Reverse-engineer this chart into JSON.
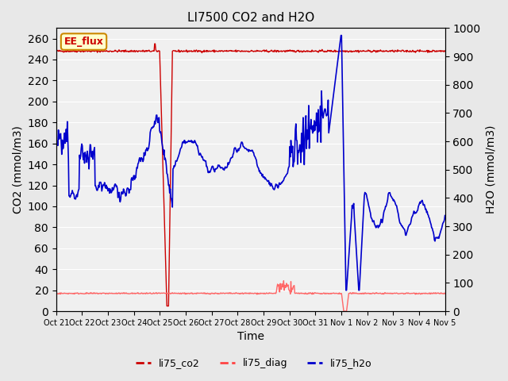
{
  "title": "LI7500 CO2 and H2O",
  "ylabel_left": "CO2 (mmol/m3)",
  "ylabel_right": "H2O (mmol/m3)",
  "xlabel": "Time",
  "ylim_left": [
    0,
    270
  ],
  "ylim_right": [
    0,
    1000
  ],
  "yticks_left": [
    0,
    20,
    40,
    60,
    80,
    100,
    120,
    140,
    160,
    180,
    200,
    220,
    240,
    260
  ],
  "yticks_right": [
    0,
    100,
    200,
    300,
    400,
    500,
    600,
    700,
    800,
    900,
    1000
  ],
  "bg_color": "#e8e8e8",
  "plot_bg": "#f0f0f0",
  "co2_color": "#cc0000",
  "diag_color": "#ff6666",
  "h2o_color": "#0000cc",
  "annotation_text": "EE_flux",
  "annotation_bg": "#ffffcc",
  "annotation_border": "#cc8800",
  "legend_items": [
    "li75_co2",
    "li75_diag",
    "li75_h2o"
  ],
  "legend_colors": [
    "#cc0000",
    "#ff4444",
    "#0000cc"
  ],
  "n_points": 700,
  "seed": 42
}
